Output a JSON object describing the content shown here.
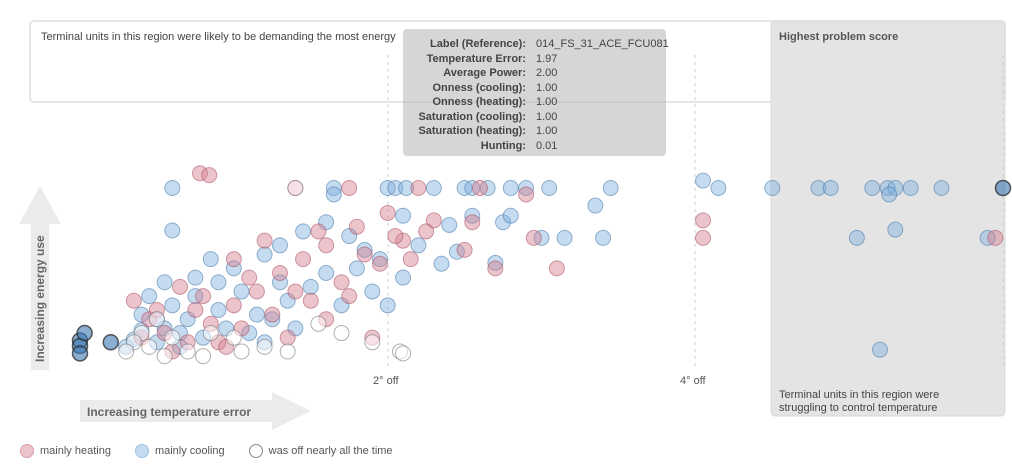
{
  "annotations": {
    "top_left": "Terminal units in this region were likely to be demanding the most energy",
    "top_right": "Highest problem score",
    "bottom_right_line1": "Terminal units in this region were",
    "bottom_right_line2": "struggling to control temperature"
  },
  "axes": {
    "x_arrow_label": "Increasing temperature error",
    "y_arrow_label": "Increasing energy use",
    "x_ticks": [
      {
        "value": 2,
        "label": "2° off"
      },
      {
        "value": 4,
        "label": "4° off"
      }
    ]
  },
  "tooltip": {
    "rows": [
      {
        "key": "Label (Reference):",
        "value": "014_FS_31_ACE_FCU081"
      },
      {
        "key": "Temperature Error:",
        "value": "1.97"
      },
      {
        "key": "Average Power:",
        "value": "2.00"
      },
      {
        "key": "Onness (cooling):",
        "value": "1.00"
      },
      {
        "key": "Onness (heating):",
        "value": "1.00"
      },
      {
        "key": "Saturation (cooling):",
        "value": "1.00"
      },
      {
        "key": "Saturation (heating):",
        "value": "1.00"
      },
      {
        "key": "Hunting:",
        "value": "0.01"
      }
    ]
  },
  "legend": [
    {
      "label": "mainly heating",
      "color": "#d47f8f"
    },
    {
      "label": "mainly cooling",
      "color": "#7fb0dd"
    },
    {
      "label": "was off nearly all the time",
      "color": "#888888"
    }
  ],
  "colors": {
    "heating_fill": "#e6a9b3",
    "cooling_fill": "#a9cbe9",
    "off_fill": "#dcdcdc",
    "heating_dark": "#c04a63",
    "cooling_dark": "#3f86c6",
    "panel": "#e4e4e4",
    "arrow": "#ebebeb"
  },
  "chart_data": {
    "type": "scatter",
    "xlabel": "Increasing temperature error",
    "ylabel": "Increasing energy use",
    "xlim": [
      0,
      6
    ],
    "ylim": [
      0,
      2.1
    ],
    "x_ticks": [
      2,
      4
    ],
    "series": [
      {
        "name": "mainly cooling",
        "points": [
          [
            2.0,
            1.97
          ],
          [
            2.05,
            1.97
          ],
          [
            2.12,
            1.97
          ],
          [
            2.3,
            1.97
          ],
          [
            2.5,
            1.97
          ],
          [
            2.55,
            1.97
          ],
          [
            2.65,
            1.97
          ],
          [
            2.8,
            1.97
          ],
          [
            2.9,
            1.97
          ],
          [
            3.05,
            1.97
          ],
          [
            4.05,
            2.05
          ],
          [
            4.15,
            1.97
          ],
          [
            4.5,
            1.97
          ],
          [
            4.8,
            1.97
          ],
          [
            4.88,
            1.97
          ],
          [
            5.15,
            1.97
          ],
          [
            5.25,
            1.97
          ],
          [
            5.3,
            1.97
          ],
          [
            5.4,
            1.97
          ],
          [
            5.6,
            1.97
          ],
          [
            5.26,
            1.9
          ],
          [
            5.3,
            1.52
          ],
          [
            5.05,
            1.43
          ],
          [
            5.9,
            1.43
          ],
          [
            3.45,
            1.97
          ],
          [
            3.35,
            1.78
          ],
          [
            3.0,
            1.43
          ],
          [
            3.15,
            1.43
          ],
          [
            3.4,
            1.43
          ],
          [
            2.75,
            1.6
          ],
          [
            2.8,
            1.67
          ],
          [
            2.55,
            1.67
          ],
          [
            2.4,
            1.57
          ],
          [
            2.1,
            1.67
          ],
          [
            2.45,
            1.28
          ],
          [
            2.7,
            1.16
          ],
          [
            0.6,
            1.97
          ],
          [
            0.6,
            1.51
          ],
          [
            1.65,
            1.97
          ],
          [
            1.65,
            1.9
          ],
          [
            5.2,
            0.22
          ],
          [
            0.3,
            0.25
          ],
          [
            0.35,
            0.33
          ],
          [
            0.4,
            0.43
          ],
          [
            0.5,
            0.55
          ],
          [
            0.6,
            0.7
          ],
          [
            0.75,
            0.8
          ],
          [
            0.9,
            0.95
          ],
          [
            1.0,
            1.1
          ],
          [
            1.2,
            1.25
          ],
          [
            1.3,
            1.35
          ],
          [
            1.45,
            1.5
          ],
          [
            1.6,
            1.6
          ],
          [
            1.75,
            1.45
          ],
          [
            1.85,
            1.3
          ],
          [
            1.95,
            1.2
          ],
          [
            2.2,
            1.35
          ],
          [
            2.35,
            1.15
          ],
          [
            1.5,
            0.9
          ],
          [
            1.35,
            0.75
          ],
          [
            1.15,
            0.6
          ],
          [
            0.95,
            0.45
          ],
          [
            0.8,
            0.35
          ],
          [
            0.65,
            0.25
          ],
          [
            0.55,
            0.45
          ],
          [
            0.7,
            0.55
          ],
          [
            1.1,
            0.4
          ],
          [
            1.25,
            0.55
          ],
          [
            1.4,
            0.45
          ],
          [
            1.7,
            0.7
          ],
          [
            1.9,
            0.85
          ],
          [
            2.1,
            1.0
          ],
          [
            1.6,
            1.05
          ],
          [
            1.05,
            0.85
          ],
          [
            0.85,
            1.2
          ],
          [
            0.45,
            0.8
          ],
          [
            0.4,
            0.6
          ],
          [
            0.55,
            0.95
          ],
          [
            1.8,
            1.1
          ],
          [
            2.0,
            0.7
          ],
          [
            1.3,
            0.95
          ],
          [
            0.9,
            0.65
          ],
          [
            0.75,
            1.0
          ],
          [
            0.65,
            0.4
          ],
          [
            0.5,
            0.3
          ],
          [
            1.2,
            0.3
          ]
        ]
      },
      {
        "name": "mainly heating",
        "points": [
          [
            0.78,
            2.13
          ],
          [
            0.84,
            2.11
          ],
          [
            1.4,
            1.97
          ],
          [
            1.75,
            1.97
          ],
          [
            2.2,
            1.97
          ],
          [
            2.6,
            1.97
          ],
          [
            2.9,
            1.9
          ],
          [
            2.55,
            1.6
          ],
          [
            2.3,
            1.62
          ],
          [
            2.0,
            1.7
          ],
          [
            2.1,
            1.4
          ],
          [
            2.5,
            1.3
          ],
          [
            2.95,
            1.43
          ],
          [
            3.1,
            1.1
          ],
          [
            2.7,
            1.1
          ],
          [
            4.05,
            1.62
          ],
          [
            4.05,
            1.43
          ],
          [
            5.95,
            1.43
          ],
          [
            1.9,
            0.35
          ],
          [
            0.35,
            0.75
          ],
          [
            0.45,
            0.55
          ],
          [
            0.55,
            0.4
          ],
          [
            0.7,
            0.3
          ],
          [
            0.85,
            0.5
          ],
          [
            1.0,
            0.7
          ],
          [
            1.15,
            0.85
          ],
          [
            1.3,
            1.05
          ],
          [
            1.45,
            1.2
          ],
          [
            1.6,
            1.35
          ],
          [
            1.8,
            1.55
          ],
          [
            1.25,
            0.6
          ],
          [
            1.05,
            0.45
          ],
          [
            0.9,
            0.3
          ],
          [
            0.6,
            0.2
          ],
          [
            1.5,
            0.75
          ],
          [
            1.7,
            0.95
          ],
          [
            1.95,
            1.15
          ],
          [
            2.15,
            1.2
          ],
          [
            1.35,
            0.35
          ],
          [
            0.75,
            0.65
          ],
          [
            1.1,
            1.0
          ],
          [
            1.55,
            1.5
          ],
          [
            2.05,
            1.45
          ],
          [
            1.85,
            1.25
          ],
          [
            0.95,
            0.25
          ],
          [
            1.6,
            0.55
          ],
          [
            2.25,
            1.5
          ],
          [
            1.4,
            0.85
          ],
          [
            0.8,
            0.8
          ],
          [
            1.2,
            1.4
          ],
          [
            0.65,
            0.9
          ],
          [
            1.0,
            1.2
          ],
          [
            1.75,
            0.8
          ],
          [
            0.5,
            0.65
          ],
          [
            0.4,
            0.35
          ]
        ]
      },
      {
        "name": "was off nearly all the time",
        "points": [
          [
            0.4,
            0.4
          ],
          [
            0.35,
            0.3
          ],
          [
            0.3,
            0.2
          ],
          [
            0.45,
            0.25
          ],
          [
            0.6,
            0.35
          ],
          [
            0.55,
            0.15
          ],
          [
            0.7,
            0.2
          ],
          [
            0.8,
            0.15
          ],
          [
            1.05,
            0.2
          ],
          [
            1.2,
            0.25
          ],
          [
            0.85,
            0.4
          ],
          [
            0.5,
            0.55
          ],
          [
            1.35,
            0.2
          ],
          [
            2.08,
            0.2
          ],
          [
            2.1,
            0.18
          ],
          [
            1.4,
            1.97
          ],
          [
            1.55,
            0.5
          ],
          [
            1.7,
            0.4
          ],
          [
            1.9,
            0.3
          ],
          [
            1.0,
            0.35
          ]
        ]
      },
      {
        "name": "",
        "points": [
          [
            0.0,
            0.32
          ],
          [
            0.0,
            0.26
          ],
          [
            0.0,
            0.18
          ],
          [
            0.03,
            0.4
          ],
          [
            6.0,
            1.97
          ],
          [
            0.2,
            0.3
          ]
        ]
      }
    ]
  }
}
